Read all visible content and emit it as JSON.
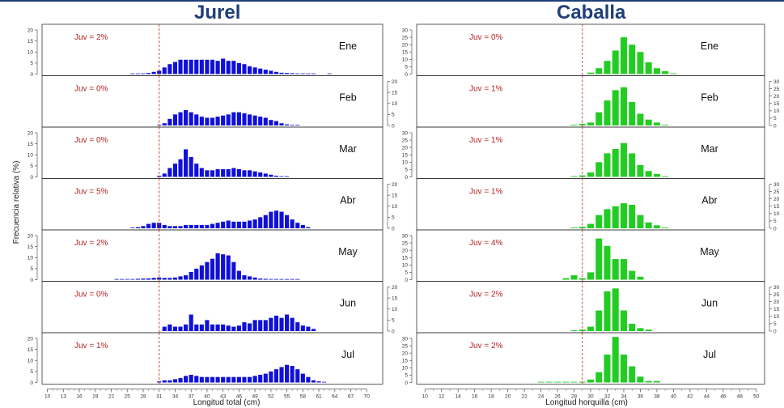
{
  "titles": {
    "left": "Jurel",
    "right": "Caballa"
  },
  "chart_data": [
    {
      "type": "bar",
      "title": "Jurel",
      "xlabel": "Longitud total (cm)",
      "ylabel": "Frecuencia relativa (%)",
      "xlim": [
        9,
        73
      ],
      "x_ticks": [
        10,
        13,
        16,
        19,
        22,
        25,
        28,
        31,
        34,
        37,
        40,
        43,
        46,
        49,
        52,
        55,
        58,
        61,
        64,
        67,
        70
      ],
      "ylim": [
        0,
        20
      ],
      "y_ticks": [
        0,
        5,
        10,
        15,
        20
      ],
      "juvenile_line_x": 31,
      "bins": [
        23,
        24,
        25,
        26,
        27,
        28,
        29,
        30,
        31,
        32,
        33,
        34,
        35,
        36,
        37,
        38,
        39,
        40,
        41,
        42,
        43,
        44,
        45,
        46,
        47,
        48,
        49,
        50,
        51,
        52,
        53,
        54,
        55,
        56,
        57,
        58,
        59,
        60,
        61,
        62,
        63
      ],
      "panels": [
        {
          "month": "Ene",
          "juv": "Juv = 2%",
          "values": [
            0,
            0,
            0,
            0.1,
            0.2,
            0.3,
            0.5,
            1,
            1.5,
            3,
            4.5,
            5.5,
            6.5,
            6.5,
            6.5,
            6.5,
            6.5,
            6.5,
            6.5,
            6,
            7,
            6,
            6,
            5,
            4.5,
            3.5,
            3,
            2.5,
            2,
            1.5,
            1,
            0.6,
            0.5,
            0.4,
            0.3,
            0.2,
            0.2,
            0.1,
            0,
            0,
            0.3
          ]
        },
        {
          "month": "Feb",
          "juv": "Juv = 0%",
          "values": [
            0,
            0,
            0,
            0,
            0,
            0,
            0,
            0,
            0.2,
            1,
            3,
            5,
            6,
            7,
            6,
            5,
            4,
            3.5,
            3.5,
            4,
            4.5,
            5,
            6,
            6,
            5.5,
            5,
            4.5,
            4,
            3.5,
            2.5,
            2,
            1,
            0.5,
            0.3,
            0.2,
            0,
            0,
            0,
            0,
            0,
            0
          ]
        },
        {
          "month": "Mar",
          "juv": "Juv = 0%",
          "values": [
            0,
            0,
            0,
            0,
            0,
            0,
            0,
            0,
            0.5,
            1.5,
            4,
            6,
            8,
            12.5,
            9,
            6,
            4,
            3,
            3,
            3.5,
            3.5,
            3.5,
            4,
            3.5,
            3,
            3,
            2.5,
            2,
            1.5,
            1,
            0.5,
            0.3,
            0.2,
            0,
            0,
            0,
            0,
            0,
            0,
            0,
            0
          ]
        },
        {
          "month": "Abr",
          "juv": "Juv = 5%",
          "values": [
            0,
            0,
            0,
            0.3,
            0.5,
            1,
            2,
            2.5,
            2.5,
            1.5,
            1,
            1,
            1,
            1.5,
            1.5,
            1.5,
            1.5,
            1.5,
            2,
            2.5,
            3,
            3.5,
            3,
            3,
            3,
            3.5,
            4,
            5,
            6,
            7.5,
            8,
            7.5,
            6,
            4,
            2.5,
            1.5,
            0.5,
            0,
            0,
            0,
            0
          ]
        },
        {
          "month": "May",
          "juv": "Juv = 2%",
          "values": [
            0.1,
            0.1,
            0.2,
            0.3,
            0.4,
            0.5,
            0.6,
            0.8,
            1,
            0.8,
            0.8,
            1,
            1.5,
            2,
            3.5,
            5,
            6.5,
            8,
            9.5,
            12,
            11.5,
            11,
            8,
            4,
            2,
            1.5,
            1,
            0.5,
            0.4,
            0.3,
            0.3,
            0.2,
            0.2,
            0.1,
            0.2,
            0,
            0,
            0,
            0,
            0,
            0
          ]
        },
        {
          "month": "Jun",
          "juv": "Juv = 0%",
          "values": [
            0,
            0,
            0,
            0,
            0,
            0,
            0,
            0,
            0,
            2,
            3,
            2,
            2,
            3,
            7.5,
            3,
            3,
            5,
            3,
            3,
            3,
            2.5,
            2,
            2.5,
            4,
            3.5,
            5,
            5,
            5,
            6,
            7,
            6,
            7.5,
            6,
            4,
            2.5,
            2,
            1,
            0,
            0,
            0
          ]
        },
        {
          "month": "Jul",
          "juv": "Juv = 1%",
          "values": [
            0,
            0,
            0,
            0,
            0,
            0,
            0,
            0,
            0.5,
            1,
            1,
            1.5,
            2,
            3,
            3.5,
            3,
            2.5,
            2.5,
            2.5,
            2.5,
            2.5,
            2.5,
            2.5,
            2.5,
            2.5,
            2.5,
            3,
            3.5,
            4,
            5,
            6,
            7,
            8,
            7.5,
            6,
            4,
            2.5,
            1,
            0.5,
            0.2,
            0
          ]
        }
      ]
    },
    {
      "type": "bar",
      "title": "Caballa",
      "xlabel": "Longitud horquilla (cm)",
      "ylabel": "",
      "xlim": [
        9,
        51
      ],
      "x_ticks": [
        10,
        12,
        14,
        16,
        18,
        20,
        22,
        24,
        26,
        28,
        30,
        32,
        34,
        36,
        38,
        40,
        42,
        44,
        46,
        48,
        50
      ],
      "ylim": [
        0,
        30
      ],
      "y_ticks": [
        0,
        5,
        10,
        15,
        20,
        25,
        30
      ],
      "juvenile_line_x": 29,
      "bins": [
        24,
        25,
        26,
        27,
        28,
        29,
        30,
        31,
        32,
        33,
        34,
        35,
        36,
        37,
        38,
        39,
        40
      ],
      "panels": [
        {
          "month": "Ene",
          "juv": "Juv = 0%",
          "values": [
            0,
            0,
            0,
            0,
            0,
            0,
            1,
            4,
            9,
            16,
            25,
            20,
            15,
            8,
            4,
            2,
            0.5
          ]
        },
        {
          "month": "Feb",
          "juv": "Juv = 1%",
          "values": [
            0,
            0,
            0,
            0,
            0.5,
            1,
            2,
            9,
            17,
            24,
            26,
            16,
            8,
            4,
            2,
            0.5,
            0
          ]
        },
        {
          "month": "Mar",
          "juv": "Juv = 1%",
          "values": [
            0,
            0,
            0,
            0,
            0.5,
            1,
            3,
            10,
            16,
            19,
            23,
            16,
            8,
            4,
            2,
            0.5,
            0
          ]
        },
        {
          "month": "Abr",
          "juv": "Juv = 1%",
          "values": [
            0,
            0,
            0,
            0,
            0.5,
            1,
            3,
            9,
            13,
            15,
            17,
            16,
            9,
            4,
            2,
            0.5,
            0
          ]
        },
        {
          "month": "May",
          "juv": "Juv = 4%",
          "values": [
            0,
            0,
            0,
            1,
            3,
            1,
            5,
            28,
            23,
            14,
            14,
            6,
            2,
            0,
            0,
            0,
            0
          ]
        },
        {
          "month": "Jun",
          "juv": "Juv = 2%",
          "values": [
            0,
            0,
            0,
            0,
            0.5,
            1,
            3,
            14,
            27,
            29,
            14,
            5,
            2,
            1,
            0,
            0,
            0
          ]
        },
        {
          "month": "Jul",
          "juv": "Juv = 2%",
          "values": [
            0.3,
            0.3,
            0.3,
            0.3,
            0.3,
            0.5,
            2,
            7,
            19,
            31,
            19,
            11,
            4,
            1,
            1,
            0,
            0
          ]
        }
      ]
    }
  ]
}
